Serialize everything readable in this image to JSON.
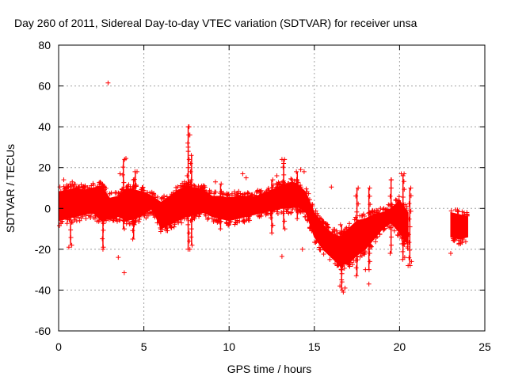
{
  "chart_data": {
    "type": "scatter",
    "title": "Day 260 of 2011, Sidereal Day-to-day VTEC variation (SDTVAR) for receiver unsa",
    "xlabel": "GPS time / hours",
    "ylabel": "SDTVAR / TECUs",
    "xlim": [
      0,
      25
    ],
    "ylim": [
      -60,
      80
    ],
    "xticks": [
      0,
      5,
      10,
      15,
      20,
      25
    ],
    "yticks": [
      -60,
      -40,
      -20,
      0,
      20,
      40,
      60,
      80
    ],
    "grid": true,
    "marker": "+",
    "series_color": "#ff0000",
    "band": [
      [
        0.0,
        -6,
        8
      ],
      [
        0.5,
        -5,
        9
      ],
      [
        1.0,
        -4,
        10
      ],
      [
        1.5,
        -3,
        9
      ],
      [
        2.0,
        -2,
        10
      ],
      [
        2.5,
        -6,
        11
      ],
      [
        3.0,
        -5,
        5
      ],
      [
        3.5,
        -4,
        6
      ],
      [
        4.0,
        -6,
        10
      ],
      [
        4.5,
        -5,
        9
      ],
      [
        5.0,
        -3,
        8
      ],
      [
        5.5,
        0,
        6
      ],
      [
        6.0,
        -10,
        3
      ],
      [
        6.5,
        -8,
        6
      ],
      [
        7.0,
        -6,
        9
      ],
      [
        7.5,
        -4,
        11
      ],
      [
        8.0,
        -3,
        10
      ],
      [
        8.5,
        -2,
        9
      ],
      [
        9.0,
        -4,
        6
      ],
      [
        9.5,
        -5,
        6
      ],
      [
        10.0,
        -6,
        5
      ],
      [
        10.5,
        -5,
        6
      ],
      [
        11.0,
        -4,
        6
      ],
      [
        11.5,
        -3,
        6
      ],
      [
        12.0,
        -2,
        7
      ],
      [
        12.5,
        -1,
        9
      ],
      [
        13.0,
        0,
        11
      ],
      [
        13.5,
        0,
        12
      ],
      [
        14.0,
        1,
        12
      ],
      [
        14.5,
        -2,
        8
      ],
      [
        15.0,
        -14,
        -2
      ],
      [
        15.5,
        -20,
        -8
      ],
      [
        16.0,
        -24,
        -12
      ],
      [
        16.5,
        -28,
        -14
      ],
      [
        17.0,
        -27,
        -10
      ],
      [
        17.5,
        -23,
        -6
      ],
      [
        18.0,
        -20,
        -5
      ],
      [
        18.5,
        -15,
        -3
      ],
      [
        19.0,
        -10,
        -2
      ],
      [
        19.5,
        -7,
        0
      ],
      [
        20.0,
        -12,
        4
      ],
      [
        20.5,
        -18,
        -2
      ],
      [
        23.0,
        -14,
        -2
      ],
      [
        23.5,
        -15,
        -3
      ],
      [
        24.0,
        -14,
        -4
      ]
    ],
    "outliers": [
      [
        2.9,
        61.5
      ],
      [
        7.65,
        40
      ],
      [
        7.7,
        36
      ],
      [
        7.6,
        30
      ],
      [
        3.95,
        24.5
      ],
      [
        4.6,
        18
      ],
      [
        3.6,
        17
      ],
      [
        10.8,
        17
      ],
      [
        13.1,
        24
      ],
      [
        13.2,
        22
      ],
      [
        14.2,
        19
      ],
      [
        14.4,
        18
      ],
      [
        20.1,
        17
      ],
      [
        20.2,
        16
      ],
      [
        19.5,
        14
      ],
      [
        12.8,
        16
      ],
      [
        11.0,
        15
      ],
      [
        16.0,
        10.5
      ],
      [
        0.3,
        14
      ],
      [
        0.8,
        13
      ],
      [
        9.2,
        13
      ],
      [
        0.6,
        -19
      ],
      [
        2.6,
        -20
      ],
      [
        3.5,
        -24
      ],
      [
        3.85,
        -31.5
      ],
      [
        7.7,
        -20
      ],
      [
        13.1,
        -23.5
      ],
      [
        14.3,
        -20
      ],
      [
        16.5,
        -38
      ],
      [
        16.7,
        -41
      ],
      [
        16.8,
        -39
      ],
      [
        16.6,
        -35
      ],
      [
        18.2,
        -37
      ],
      [
        20.5,
        -28
      ],
      [
        20.7,
        -26
      ],
      [
        23.0,
        -22
      ],
      [
        17.5,
        -22
      ],
      [
        18.0,
        -30
      ],
      [
        20.3,
        -24
      ]
    ],
    "spikes": [
      [
        7.6,
        -20,
        40
      ],
      [
        7.8,
        -18,
        26
      ],
      [
        3.8,
        -10,
        24
      ],
      [
        4.5,
        -8,
        18
      ],
      [
        13.2,
        -10,
        24
      ],
      [
        14.0,
        -5,
        18
      ],
      [
        17.5,
        -33,
        10
      ],
      [
        18.2,
        -30,
        10
      ],
      [
        19.5,
        -22,
        14
      ],
      [
        20.2,
        -25,
        17
      ],
      [
        20.6,
        -28,
        10
      ],
      [
        16.6,
        -40,
        -8
      ],
      [
        2.6,
        -19,
        10
      ],
      [
        0.7,
        -18,
        12
      ],
      [
        4.4,
        -15,
        14
      ],
      [
        12.5,
        -12,
        14
      ],
      [
        9.5,
        -10,
        12
      ]
    ]
  }
}
